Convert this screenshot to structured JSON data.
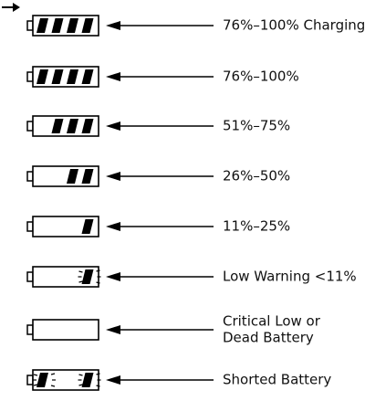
{
  "items": [
    {
      "label": "76%–100% Charging"
    },
    {
      "label": "76%–100%"
    },
    {
      "label": "51%–75%"
    },
    {
      "label": "26%–50%"
    },
    {
      "label": "11%–25%"
    },
    {
      "label": "Low Warning <11%"
    },
    {
      "lines": [
        "Critical Low or",
        "Dead Battery"
      ]
    },
    {
      "label": "Shorted Battery"
    }
  ]
}
